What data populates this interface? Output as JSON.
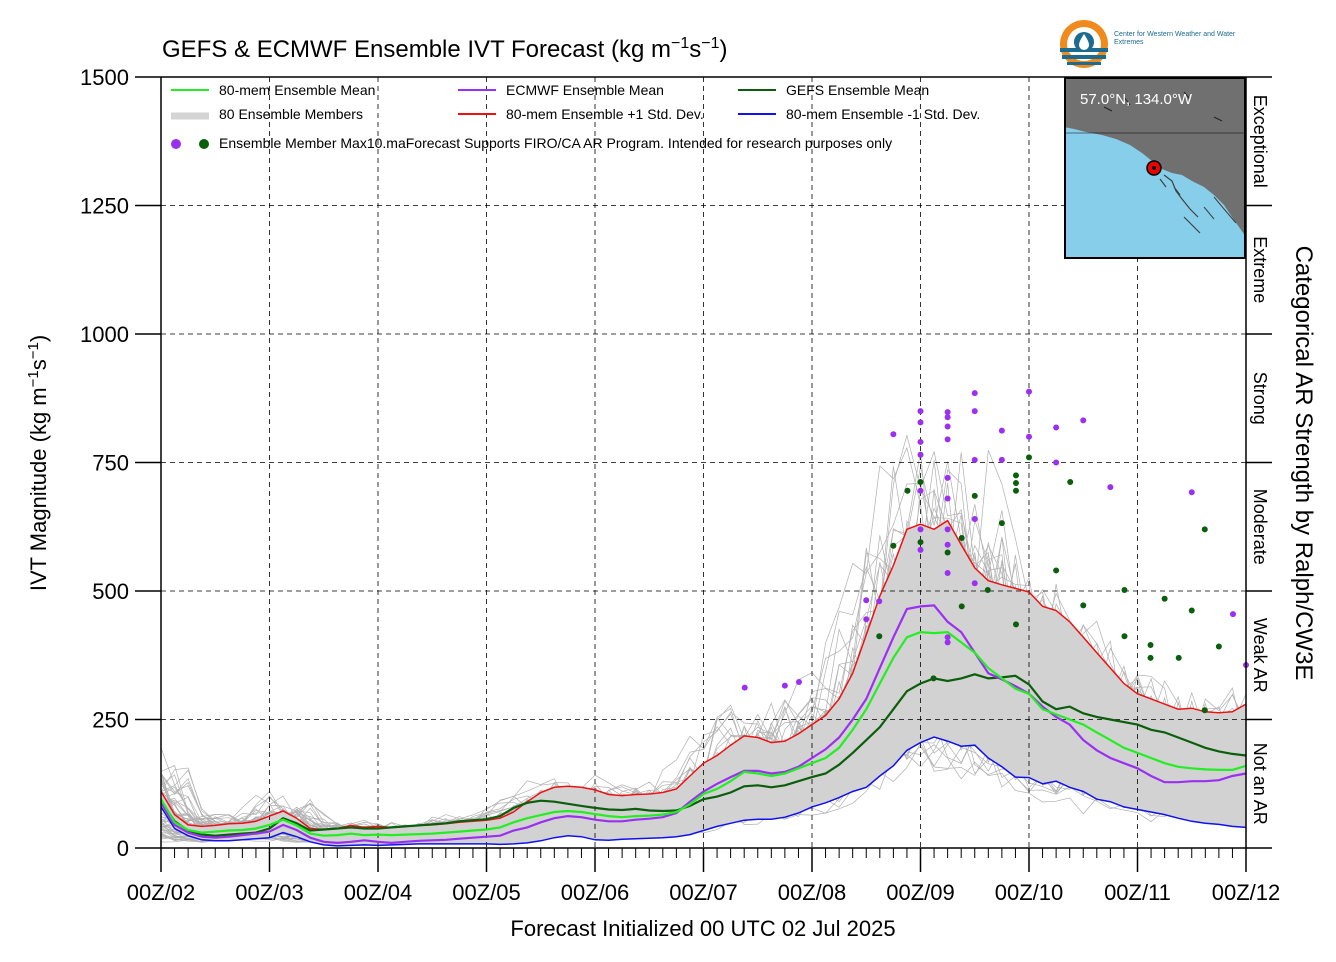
{
  "chart_data": {
    "type": "line",
    "title_line": "GEFS & ECMWF Ensemble IVT Forecast (kg m",
    "title_sup1": "−1",
    "title_mid": "s",
    "title_sup2": "−1",
    "title_end": ")",
    "ylabel_main": "IVT Magnitude (kg m",
    "ylabel_sup1": "−1",
    "ylabel_mid": "s",
    "ylabel_sup2": "−1",
    "ylabel_end": ")",
    "xlabel": "Forecast Initialized 00 UTC 02 Jul 2025",
    "right_label": "Categorical AR Strength by Ralph/CW3E",
    "x_ticks": [
      "00Z/02",
      "00Z/03",
      "00Z/04",
      "00Z/05",
      "00Z/06",
      "00Z/07",
      "00Z/08",
      "00Z/09",
      "00Z/10",
      "00Z/11",
      "00Z/12"
    ],
    "x_range_days": [
      2,
      12
    ],
    "y_ticks": [
      0,
      250,
      500,
      750,
      1000,
      1250,
      1500
    ],
    "ylim": [
      0,
      1500
    ],
    "grid": true,
    "categories": [
      {
        "name": "Not an AR",
        "from": 0,
        "to": 250
      },
      {
        "name": "Weak AR",
        "from": 250,
        "to": 500
      },
      {
        "name": "Moderate",
        "from": 500,
        "to": 750
      },
      {
        "name": "Strong",
        "from": 750,
        "to": 1000
      },
      {
        "name": "Extreme",
        "from": 1000,
        "to": 1250
      },
      {
        "name": "Exceptional",
        "from": 1250,
        "to": 1500
      }
    ],
    "legend": {
      "placement": "top-left",
      "items": [
        {
          "label": "80-mem Ensemble Mean",
          "color": "#22ee22",
          "kind": "line"
        },
        {
          "label": "ECMWF Ensemble Mean",
          "color": "#9b30f0",
          "kind": "line"
        },
        {
          "label": "GEFS Ensemble Mean",
          "color": "#0b5e0b",
          "kind": "line"
        },
        {
          "label": "80 Ensemble Members",
          "color": "#aaaaaa",
          "kind": "thin"
        },
        {
          "label": "80-mem Ensemble +1 Std. Dev.",
          "color": "#ee1111",
          "kind": "line"
        },
        {
          "label": "80-mem Ensemble -1 Std. Dev.",
          "color": "#1111ee",
          "kind": "line"
        }
      ],
      "dots_label": "Ensemble Member Max10.maForecast Supports FIRO/CA AR Program. Intended for research purposes only"
    },
    "x": [
      2.0,
      2.125,
      2.25,
      2.375,
      2.5,
      2.625,
      2.75,
      2.875,
      3.0,
      3.125,
      3.25,
      3.375,
      3.5,
      3.625,
      3.75,
      3.875,
      4.0,
      4.125,
      4.25,
      4.375,
      4.5,
      4.625,
      4.75,
      4.875,
      5.0,
      5.125,
      5.25,
      5.375,
      5.5,
      5.625,
      5.75,
      5.875,
      6.0,
      6.125,
      6.25,
      6.375,
      6.5,
      6.625,
      6.75,
      6.875,
      7.0,
      7.125,
      7.25,
      7.375,
      7.5,
      7.625,
      7.75,
      7.875,
      8.0,
      8.125,
      8.25,
      8.375,
      8.5,
      8.625,
      8.75,
      8.875,
      9.0,
      9.125,
      9.25,
      9.375,
      9.5,
      9.625,
      9.75,
      9.875,
      10.0,
      10.125,
      10.25,
      10.375,
      10.5,
      10.625,
      10.75,
      10.875,
      11.0,
      11.125,
      11.25,
      11.375,
      11.5,
      11.625,
      11.75,
      11.875,
      12.0
    ],
    "series": [
      {
        "name": "80-mem Ensemble +1 Std. Dev.",
        "color": "#ee1111",
        "values": [
          110,
          65,
          45,
          42,
          44,
          47,
          48,
          52,
          62,
          72,
          58,
          38,
          36,
          38,
          44,
          40,
          42,
          40,
          42,
          44,
          45,
          47,
          50,
          52,
          54,
          58,
          70,
          90,
          108,
          118,
          120,
          118,
          113,
          104,
          102,
          104,
          105,
          108,
          115,
          140,
          165,
          180,
          200,
          218,
          215,
          205,
          208,
          222,
          240,
          258,
          290,
          340,
          415,
          490,
          550,
          620,
          630,
          620,
          637,
          590,
          545,
          520,
          512,
          505,
          498,
          470,
          462,
          440,
          410,
          380,
          350,
          320,
          300,
          290,
          280,
          270,
          272,
          265,
          263,
          265,
          280
        ]
      },
      {
        "name": "80-mem Ensemble Mean",
        "color": "#22ee22",
        "values": [
          95,
          50,
          35,
          30,
          32,
          34,
          35,
          38,
          45,
          55,
          44,
          28,
          24,
          25,
          28,
          25,
          26,
          25,
          26,
          27,
          28,
          30,
          32,
          34,
          36,
          40,
          50,
          58,
          64,
          70,
          72,
          70,
          66,
          62,
          60,
          62,
          63,
          65,
          70,
          85,
          105,
          115,
          130,
          148,
          145,
          140,
          145,
          155,
          165,
          175,
          195,
          230,
          270,
          320,
          370,
          410,
          420,
          418,
          420,
          400,
          380,
          350,
          330,
          310,
          300,
          270,
          260,
          250,
          240,
          225,
          210,
          195,
          185,
          175,
          165,
          158,
          155,
          153,
          152,
          152,
          160
        ]
      },
      {
        "name": "GEFS Ensemble Mean",
        "color": "#0b5e0b",
        "values": [
          92,
          52,
          34,
          26,
          24,
          26,
          28,
          30,
          38,
          58,
          48,
          34,
          36,
          38,
          40,
          38,
          38,
          40,
          42,
          44,
          46,
          48,
          52,
          54,
          56,
          62,
          78,
          88,
          92,
          90,
          86,
          82,
          78,
          75,
          74,
          76,
          73,
          72,
          73,
          82,
          95,
          100,
          108,
          120,
          122,
          118,
          122,
          130,
          138,
          145,
          162,
          185,
          210,
          235,
          270,
          305,
          320,
          330,
          325,
          330,
          338,
          330,
          332,
          335,
          318,
          285,
          270,
          275,
          262,
          255,
          250,
          245,
          240,
          230,
          225,
          215,
          205,
          195,
          188,
          183,
          180
        ]
      },
      {
        "name": "ECMWF Ensemble Mean",
        "color": "#9b30f0",
        "values": [
          88,
          45,
          30,
          22,
          20,
          22,
          25,
          28,
          32,
          45,
          35,
          20,
          12,
          10,
          12,
          15,
          12,
          10,
          12,
          14,
          15,
          16,
          18,
          20,
          22,
          24,
          34,
          40,
          50,
          58,
          62,
          60,
          55,
          52,
          52,
          55,
          57,
          60,
          68,
          90,
          110,
          125,
          138,
          150,
          150,
          145,
          148,
          158,
          175,
          192,
          215,
          250,
          290,
          350,
          410,
          465,
          470,
          472,
          440,
          420,
          380,
          340,
          328,
          315,
          300,
          275,
          255,
          240,
          210,
          190,
          175,
          165,
          155,
          140,
          128,
          128,
          130,
          130,
          132,
          140,
          145
        ]
      },
      {
        "name": "80-mem Ensemble -1 Std. Dev.",
        "color": "#1111ee",
        "values": [
          80,
          38,
          24,
          16,
          14,
          14,
          16,
          18,
          20,
          30,
          22,
          12,
          6,
          4,
          5,
          6,
          5,
          6,
          7,
          8,
          8,
          8,
          8,
          8,
          8,
          7,
          8,
          10,
          14,
          20,
          24,
          22,
          16,
          15,
          17,
          18,
          19,
          20,
          22,
          26,
          34,
          42,
          48,
          54,
          56,
          56,
          60,
          68,
          80,
          88,
          98,
          110,
          118,
          140,
          160,
          190,
          205,
          216,
          208,
          198,
          200,
          175,
          158,
          138,
          137,
          125,
          130,
          118,
          110,
          95,
          90,
          80,
          75,
          70,
          65,
          58,
          52,
          48,
          46,
          42,
          40
        ]
      }
    ],
    "ecmwf_member_max_points": [
      [
        7.38,
        312
      ],
      [
        7.75,
        316
      ],
      [
        7.88,
        323
      ],
      [
        8.5,
        482
      ],
      [
        8.5,
        445
      ],
      [
        8.62,
        480
      ],
      [
        8.75,
        805
      ],
      [
        9.0,
        850
      ],
      [
        9.0,
        828
      ],
      [
        9.0,
        790
      ],
      [
        9.0,
        765
      ],
      [
        9.0,
        695
      ],
      [
        9.0,
        620
      ],
      [
        9.0,
        580
      ],
      [
        9.25,
        848
      ],
      [
        9.25,
        838
      ],
      [
        9.25,
        820
      ],
      [
        9.25,
        795
      ],
      [
        9.25,
        720
      ],
      [
        9.25,
        680
      ],
      [
        9.25,
        620
      ],
      [
        9.25,
        590
      ],
      [
        9.25,
        535
      ],
      [
        9.25,
        410
      ],
      [
        9.25,
        400
      ],
      [
        9.5,
        885
      ],
      [
        9.5,
        850
      ],
      [
        9.5,
        755
      ],
      [
        9.5,
        640
      ],
      [
        9.5,
        515
      ],
      [
        9.75,
        812
      ],
      [
        9.75,
        755
      ],
      [
        10.0,
        888
      ],
      [
        10.0,
        800
      ],
      [
        10.25,
        818
      ],
      [
        10.25,
        750
      ],
      [
        10.5,
        832
      ],
      [
        10.75,
        702
      ],
      [
        11.5,
        692
      ],
      [
        11.88,
        455
      ],
      [
        12.0,
        356
      ]
    ],
    "gefs_member_max_points": [
      [
        8.62,
        412
      ],
      [
        8.75,
        588
      ],
      [
        8.88,
        695
      ],
      [
        9.0,
        712
      ],
      [
        9.0,
        595
      ],
      [
        9.12,
        330
      ],
      [
        9.25,
        575
      ],
      [
        9.38,
        603
      ],
      [
        9.38,
        470
      ],
      [
        9.5,
        685
      ],
      [
        9.62,
        502
      ],
      [
        9.75,
        632
      ],
      [
        9.88,
        725
      ],
      [
        9.88,
        710
      ],
      [
        9.88,
        695
      ],
      [
        9.88,
        435
      ],
      [
        10.0,
        760
      ],
      [
        10.25,
        540
      ],
      [
        10.38,
        712
      ],
      [
        10.5,
        472
      ],
      [
        10.88,
        502
      ],
      [
        10.88,
        412
      ],
      [
        11.12,
        395
      ],
      [
        11.12,
        370
      ],
      [
        11.25,
        485
      ],
      [
        11.38,
        370
      ],
      [
        11.5,
        462
      ],
      [
        11.62,
        620
      ],
      [
        11.62,
        268
      ],
      [
        11.75,
        392
      ]
    ],
    "ecmwf_dot_color": "#9b30f0",
    "gefs_dot_color": "#0b5e0b",
    "members_color": "#b0b0b0",
    "spread_fill_color": "#d2d2d2"
  },
  "inset_map": {
    "location_label": "57.0°N, 134.0°W",
    "land_color": "#707070",
    "ocean_color": "#87ceeb",
    "marker_color": "#ee0000"
  },
  "logo": {
    "text": "Center for Western Weather and Water Extremes"
  }
}
